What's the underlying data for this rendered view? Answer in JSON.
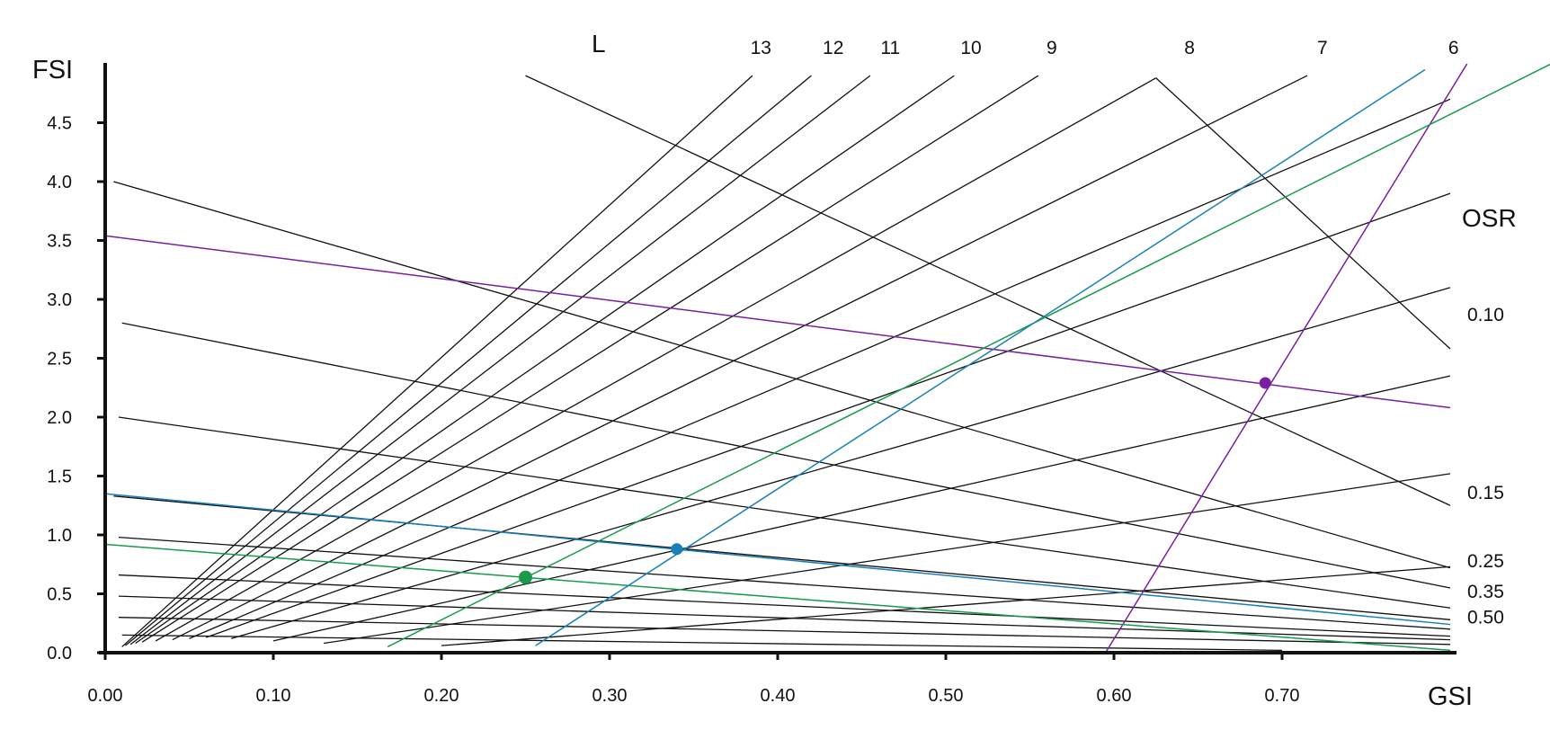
{
  "chart_data": {
    "type": "line",
    "title": "",
    "xlabel": "GSI",
    "ylabel": "FSI",
    "xlim": [
      0,
      0.8
    ],
    "ylim": [
      0,
      5.0
    ],
    "grid": false,
    "x_ticks": [
      "0.00",
      "0.10",
      "0.20",
      "0.30",
      "0.40",
      "0.50",
      "0.60",
      "0.70"
    ],
    "y_ticks": [
      "0.0",
      "0.5",
      "1.0",
      "1.5",
      "2.0",
      "2.5",
      "3.0",
      "3.5",
      "4.0",
      "4.5"
    ],
    "l_group_title": "L",
    "l_lines": [
      {
        "label": "13",
        "x0": 0.01,
        "y0": 0.05,
        "x1": 0.385,
        "y1": 4.9
      },
      {
        "label": "12",
        "x0": 0.012,
        "y0": 0.06,
        "x1": 0.42,
        "y1": 4.9
      },
      {
        "label": "11",
        "x0": 0.015,
        "y0": 0.07,
        "x1": 0.455,
        "y1": 4.9
      },
      {
        "label": "10",
        "x0": 0.018,
        "y0": 0.08,
        "x1": 0.505,
        "y1": 4.9
      },
      {
        "label": "9",
        "x0": 0.022,
        "y0": 0.09,
        "x1": 0.555,
        "y1": 4.9
      },
      {
        "label": "8",
        "x0": 0.03,
        "y0": 0.1,
        "x1": 0.625,
        "y1": 4.88
      },
      {
        "label": "7",
        "x0": 0.04,
        "y0": 0.11,
        "x1": 0.715,
        "y1": 4.9
      },
      {
        "label": "",
        "x0": 0.05,
        "y0": 0.12,
        "x1": 0.8,
        "y1": 4.7
      },
      {
        "label": "",
        "x0": 0.06,
        "y0": 0.13,
        "x1": 0.8,
        "y1": 3.9
      },
      {
        "label": "",
        "x0": 0.075,
        "y0": 0.12,
        "x1": 0.8,
        "y1": 3.1
      },
      {
        "label": "",
        "x0": 0.1,
        "y0": 0.1,
        "x1": 0.8,
        "y1": 2.35
      },
      {
        "label": "",
        "x0": 0.13,
        "y0": 0.08,
        "x1": 0.8,
        "y1": 1.52
      },
      {
        "label": "",
        "x0": 0.2,
        "y0": 0.06,
        "x1": 0.8,
        "y1": 0.73
      }
    ],
    "osr_group_title": "OSR",
    "osr_lines": [
      {
        "label": "",
        "x0": 0.25,
        "y0": 4.9,
        "x1": 0.8,
        "y1": 1.25
      },
      {
        "label": "",
        "x0": 0.625,
        "y0": 4.88,
        "x1": 0.8,
        "y1": 2.58
      },
      {
        "label": "",
        "x0": 0.005,
        "y0": 4.0,
        "x1": 0.8,
        "y1": 0.72
      },
      {
        "label": "",
        "x0": 0.01,
        "y0": 2.8,
        "x1": 0.8,
        "y1": 0.55
      },
      {
        "label": "",
        "x0": 0.008,
        "y0": 2.0,
        "x1": 0.8,
        "y1": 0.38
      },
      {
        "label": "",
        "x0": 0.005,
        "y0": 1.33,
        "x1": 0.8,
        "y1": 0.28
      },
      {
        "label": "",
        "x0": 0.008,
        "y0": 0.98,
        "x1": 0.8,
        "y1": 0.2
      },
      {
        "label": "",
        "x0": 0.008,
        "y0": 0.66,
        "x1": 0.8,
        "y1": 0.14
      },
      {
        "label": "",
        "x0": 0.008,
        "y0": 0.48,
        "x1": 0.8,
        "y1": 0.11
      },
      {
        "label": "",
        "x0": 0.008,
        "y0": 0.3,
        "x1": 0.8,
        "y1": 0.07
      },
      {
        "label": "",
        "x0": 0.01,
        "y0": 0.15,
        "x1": 0.7,
        "y1": 0.02
      }
    ],
    "l_labels_top": [
      {
        "text": "13",
        "x": 0.39
      },
      {
        "text": "12",
        "x": 0.433
      },
      {
        "text": "11",
        "x": 0.467
      },
      {
        "text": "10",
        "x": 0.515
      },
      {
        "text": "9",
        "x": 0.563
      },
      {
        "text": "8",
        "x": 0.645
      },
      {
        "text": "7",
        "x": 0.724
      },
      {
        "text": "6",
        "x": 0.802
      }
    ],
    "osr_labels_right": [
      {
        "text": "0.10",
        "y": 2.87
      },
      {
        "text": "0.15",
        "y": 1.36
      },
      {
        "text": "0.25",
        "y": 0.78
      },
      {
        "text": "0.35",
        "y": 0.52
      },
      {
        "text": "0.50",
        "y": 0.3
      }
    ],
    "highlight_series": [
      {
        "color": "#7a1fa0",
        "point": {
          "x": 0.69,
          "y": 2.29
        },
        "osr_line": {
          "x0": 0.0,
          "y0": 3.54,
          "x1": 0.8,
          "y1": 2.08
        },
        "l_line": {
          "x0": 0.595,
          "y0": 0.0,
          "x1": 0.81,
          "y1": 5.0
        }
      },
      {
        "color": "#1a9a4a",
        "point": {
          "x": 0.25,
          "y": 0.64
        },
        "osr_line": {
          "x0": 0.0,
          "y0": 0.92,
          "x1": 0.8,
          "y1": 0.02
        },
        "l_line": {
          "x0": 0.168,
          "y0": 0.05,
          "x1": 0.86,
          "y1": 5.0
        }
      },
      {
        "color": "#1a7fb8",
        "point": {
          "x": 0.34,
          "y": 0.88
        },
        "osr_line": {
          "x0": 0.0,
          "y0": 1.35,
          "x1": 0.8,
          "y1": 0.24
        },
        "l_line": {
          "x0": 0.256,
          "y0": 0.06,
          "x1": 0.785,
          "y1": 4.95
        }
      }
    ],
    "colors": {
      "axis": "#111111",
      "lines": "#111111",
      "purple": "#7a1fa0",
      "green": "#1a9a4a",
      "blue": "#1a7fb8"
    }
  }
}
